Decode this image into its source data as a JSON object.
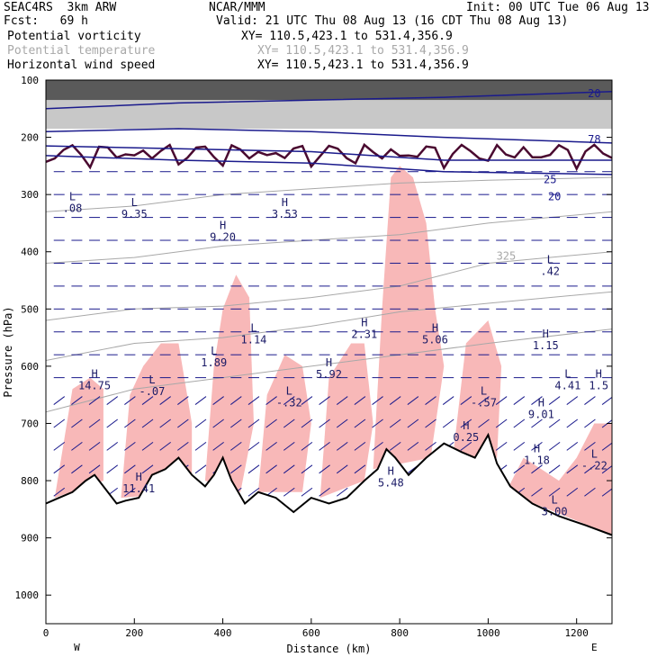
{
  "header": {
    "model": "SEAC4RS  3km ARW",
    "org": "NCAR/MMM",
    "init": "Init: 00 UTC Tue 06 Aug 13",
    "fcst": "Fcst:   69 h",
    "valid": "Valid: 21 UTC Thu 08 Aug 13 (16 CDT Thu 08 Aug 13)",
    "fields": [
      {
        "name": "Potential vorticity",
        "xy": "XY= 110.5,423.1 to 531.4,356.9",
        "color": "#000000"
      },
      {
        "name": "Potential temperature",
        "xy": "XY= 110.5,423.1 to 531.4,356.9",
        "color": "#a8a8a8"
      },
      {
        "name": "Horizontal wind speed",
        "xy": "XY= 110.5,423.1 to 531.4,356.9",
        "color": "#000000"
      }
    ]
  },
  "chart_data": {
    "type": "cross-section",
    "xlabel": "Distance (km)",
    "ylabel": "Pressure (hPa)",
    "xlim": [
      0,
      1280
    ],
    "ylim": [
      100,
      1050
    ],
    "xticks": [
      0,
      200,
      400,
      600,
      800,
      1000,
      1200
    ],
    "yticks": [
      100,
      200,
      300,
      400,
      500,
      600,
      700,
      800,
      900,
      1000
    ],
    "x_endpoints": {
      "left": "W",
      "right": "E"
    },
    "colors": {
      "pv_fill": "#f8b8b8",
      "pv_dark": "#4a0a30",
      "theta": "#a8a8a8",
      "wind": "#1a1a8c",
      "terrain": "#000000"
    },
    "terrain_profile": [
      [
        0,
        840
      ],
      [
        30,
        830
      ],
      [
        60,
        820
      ],
      [
        90,
        800
      ],
      [
        110,
        790
      ],
      [
        130,
        810
      ],
      [
        160,
        840
      ],
      [
        180,
        835
      ],
      [
        210,
        830
      ],
      [
        240,
        790
      ],
      [
        270,
        780
      ],
      [
        300,
        760
      ],
      [
        330,
        790
      ],
      [
        360,
        810
      ],
      [
        380,
        790
      ],
      [
        400,
        760
      ],
      [
        420,
        800
      ],
      [
        450,
        840
      ],
      [
        480,
        820
      ],
      [
        520,
        830
      ],
      [
        560,
        855
      ],
      [
        600,
        830
      ],
      [
        640,
        840
      ],
      [
        680,
        830
      ],
      [
        720,
        800
      ],
      [
        750,
        780
      ],
      [
        770,
        745
      ],
      [
        790,
        760
      ],
      [
        820,
        790
      ],
      [
        860,
        760
      ],
      [
        900,
        735
      ],
      [
        940,
        750
      ],
      [
        970,
        760
      ],
      [
        1000,
        720
      ],
      [
        1020,
        770
      ],
      [
        1050,
        810
      ],
      [
        1100,
        840
      ],
      [
        1160,
        862
      ],
      [
        1220,
        878
      ],
      [
        1280,
        895
      ]
    ],
    "theta_contours": [
      {
        "label": "325",
        "points": [
          [
            0,
            520
          ],
          [
            200,
            500
          ],
          [
            400,
            495
          ],
          [
            600,
            480
          ],
          [
            800,
            460
          ],
          [
            1000,
            420
          ],
          [
            1280,
            400
          ]
        ]
      },
      {
        "label": "",
        "points": [
          [
            0,
            590
          ],
          [
            200,
            560
          ],
          [
            400,
            550
          ],
          [
            600,
            530
          ],
          [
            800,
            505
          ],
          [
            1000,
            490
          ],
          [
            1280,
            470
          ]
        ]
      },
      {
        "label": "",
        "points": [
          [
            0,
            680
          ],
          [
            200,
            640
          ],
          [
            400,
            620
          ],
          [
            600,
            600
          ],
          [
            800,
            580
          ],
          [
            1000,
            560
          ],
          [
            1280,
            535
          ]
        ]
      },
      {
        "label": "",
        "points": [
          [
            0,
            420
          ],
          [
            200,
            410
          ],
          [
            400,
            390
          ],
          [
            600,
            380
          ],
          [
            800,
            370
          ],
          [
            1000,
            350
          ],
          [
            1280,
            330
          ]
        ]
      },
      {
        "label": "",
        "points": [
          [
            0,
            330
          ],
          [
            200,
            320
          ],
          [
            400,
            300
          ],
          [
            600,
            290
          ],
          [
            800,
            280
          ],
          [
            1000,
            275
          ],
          [
            1280,
            270
          ]
        ]
      }
    ],
    "wind_contours": [
      {
        "label": "20",
        "points": [
          [
            0,
            150
          ],
          [
            300,
            140
          ],
          [
            600,
            135
          ],
          [
            900,
            130
          ],
          [
            1280,
            120
          ]
        ]
      },
      {
        "label": "25",
        "points": [
          [
            0,
            190
          ],
          [
            300,
            185
          ],
          [
            600,
            190
          ],
          [
            900,
            200
          ],
          [
            1280,
            210
          ]
        ]
      },
      {
        "label": "20",
        "points": [
          [
            0,
            215
          ],
          [
            300,
            220
          ],
          [
            600,
            225
          ],
          [
            900,
            240
          ],
          [
            1280,
            240
          ]
        ]
      },
      {
        "label": "",
        "points": [
          [
            0,
            232
          ],
          [
            300,
            240
          ],
          [
            600,
            245
          ],
          [
            900,
            260
          ],
          [
            1280,
            265
          ]
        ]
      }
    ],
    "pv_fill_regions": [
      [
        [
          20,
          830
        ],
        [
          60,
          640
        ],
        [
          100,
          620
        ],
        [
          130,
          640
        ],
        [
          130,
          800
        ],
        [
          20,
          830
        ]
      ],
      [
        [
          170,
          830
        ],
        [
          190,
          650
        ],
        [
          220,
          600
        ],
        [
          260,
          560
        ],
        [
          300,
          560
        ],
        [
          330,
          700
        ],
        [
          330,
          820
        ],
        [
          170,
          830
        ]
      ],
      [
        [
          360,
          800
        ],
        [
          380,
          600
        ],
        [
          400,
          500
        ],
        [
          430,
          440
        ],
        [
          460,
          480
        ],
        [
          470,
          700
        ],
        [
          440,
          820
        ],
        [
          360,
          800
        ]
      ],
      [
        [
          480,
          820
        ],
        [
          500,
          650
        ],
        [
          540,
          580
        ],
        [
          580,
          600
        ],
        [
          600,
          700
        ],
        [
          580,
          820
        ],
        [
          480,
          820
        ]
      ],
      [
        [
          620,
          830
        ],
        [
          640,
          620
        ],
        [
          690,
          560
        ],
        [
          720,
          560
        ],
        [
          740,
          700
        ],
        [
          720,
          800
        ],
        [
          620,
          830
        ]
      ],
      [
        [
          740,
          780
        ],
        [
          760,
          500
        ],
        [
          780,
          270
        ],
        [
          800,
          250
        ],
        [
          830,
          270
        ],
        [
          860,
          350
        ],
        [
          880,
          500
        ],
        [
          900,
          600
        ],
        [
          870,
          760
        ],
        [
          740,
          780
        ]
      ],
      [
        [
          920,
          760
        ],
        [
          950,
          560
        ],
        [
          1000,
          520
        ],
        [
          1030,
          600
        ],
        [
          1020,
          760
        ],
        [
          920,
          760
        ]
      ],
      [
        [
          1040,
          820
        ],
        [
          1080,
          760
        ],
        [
          1120,
          780
        ],
        [
          1160,
          800
        ],
        [
          1200,
          760
        ],
        [
          1240,
          700
        ],
        [
          1280,
          700
        ],
        [
          1280,
          895
        ],
        [
          1040,
          820
        ]
      ]
    ],
    "pv_max_min": [
      {
        "kind": "L",
        "value": ".08",
        "x": 60,
        "p": 310
      },
      {
        "kind": "L",
        "value": "9.35",
        "x": 200,
        "p": 320
      },
      {
        "kind": "H",
        "value": "3.53",
        "x": 540,
        "p": 320
      },
      {
        "kind": "H",
        "value": "9.20",
        "x": 400,
        "p": 360
      },
      {
        "kind": "L",
        "value": ".42",
        "x": 1140,
        "p": 420
      },
      {
        "kind": "H",
        "value": "2.31",
        "x": 720,
        "p": 530
      },
      {
        "kind": "H",
        "value": "5.06",
        "x": 880,
        "p": 540
      },
      {
        "kind": "H",
        "value": "1.15",
        "x": 1130,
        "p": 550
      },
      {
        "kind": "L",
        "value": "1.89",
        "x": 380,
        "p": 580
      },
      {
        "kind": "L",
        "value": "1.14",
        "x": 470,
        "p": 540
      },
      {
        "kind": "H",
        "value": "5.92",
        "x": 640,
        "p": 600
      },
      {
        "kind": "L",
        "value": "4.41",
        "x": 1180,
        "p": 620
      },
      {
        "kind": "H",
        "value": "1.5",
        "x": 1250,
        "p": 620
      },
      {
        "kind": "L",
        "value": "-.07",
        "x": 240,
        "p": 630
      },
      {
        "kind": "L",
        "value": "-.32",
        "x": 550,
        "p": 650
      },
      {
        "kind": "L",
        "value": "-.57",
        "x": 990,
        "p": 650
      },
      {
        "kind": "H",
        "value": "9.01",
        "x": 1120,
        "p": 670
      },
      {
        "kind": "H",
        "value": "0.25",
        "x": 950,
        "p": 710
      },
      {
        "kind": "H",
        "value": "1.18",
        "x": 1110,
        "p": 750
      },
      {
        "kind": "L",
        "value": "-.22",
        "x": 1240,
        "p": 760
      },
      {
        "kind": "H",
        "value": "11.41",
        "x": 210,
        "p": 800
      },
      {
        "kind": "H",
        "value": "5.48",
        "x": 780,
        "p": 790
      },
      {
        "kind": "L",
        "value": "3.00",
        "x": 1150,
        "p": 840
      },
      {
        "kind": "H",
        "value": "14.75",
        "x": 110,
        "p": 620
      }
    ],
    "wind_labels": [
      {
        "value": "20",
        "x": 1240,
        "p": 130
      },
      {
        "value": "25",
        "x": 1140,
        "p": 280
      },
      {
        "value": "20",
        "x": 1150,
        "p": 310
      },
      {
        "value": "78",
        "x": 1240,
        "p": 210
      }
    ],
    "title": ""
  }
}
